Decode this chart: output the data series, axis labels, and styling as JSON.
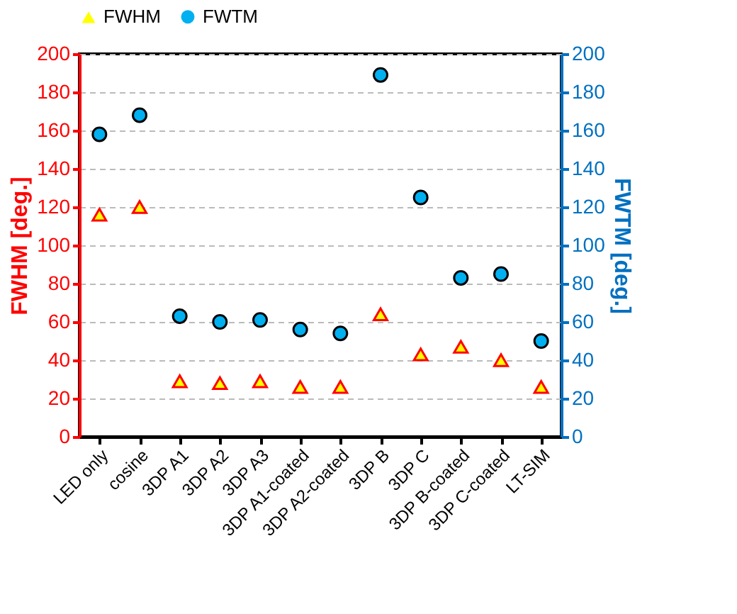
{
  "chart_data": {
    "type": "scatter",
    "ylabel": "FWHM [deg.]",
    "y2label": "FWTM [deg.]",
    "categories": [
      "LED only",
      "cosine",
      "3DP A1",
      "3DP A2",
      "3DP A3",
      "3DP A1-coated",
      "3DP A2-coated",
      "3DP B",
      "3DP C",
      "3DP B-coated",
      "3DP C-coated",
      "LT-SIM"
    ],
    "series": [
      {
        "name": "FWHM",
        "color": "#ffff00",
        "marker": "triangle",
        "values": [
          116,
          120,
          29,
          28,
          29,
          26,
          26,
          64,
          43,
          47,
          40,
          26
        ]
      },
      {
        "name": "FWTM",
        "color": "#00b0f0",
        "marker": "circle",
        "axis": "y2",
        "values": [
          158,
          168,
          63,
          60,
          61,
          56,
          54,
          189,
          125,
          83,
          85,
          50
        ]
      }
    ],
    "ylim": [
      0,
      200
    ],
    "yticks": [
      0,
      20,
      40,
      60,
      80,
      100,
      120,
      140,
      160,
      180,
      200
    ],
    "y2lim": [
      0,
      200
    ],
    "y2ticks": [
      0,
      20,
      40,
      60,
      80,
      100,
      120,
      140,
      160,
      180,
      200
    ],
    "grid": "y",
    "legend": "top"
  }
}
